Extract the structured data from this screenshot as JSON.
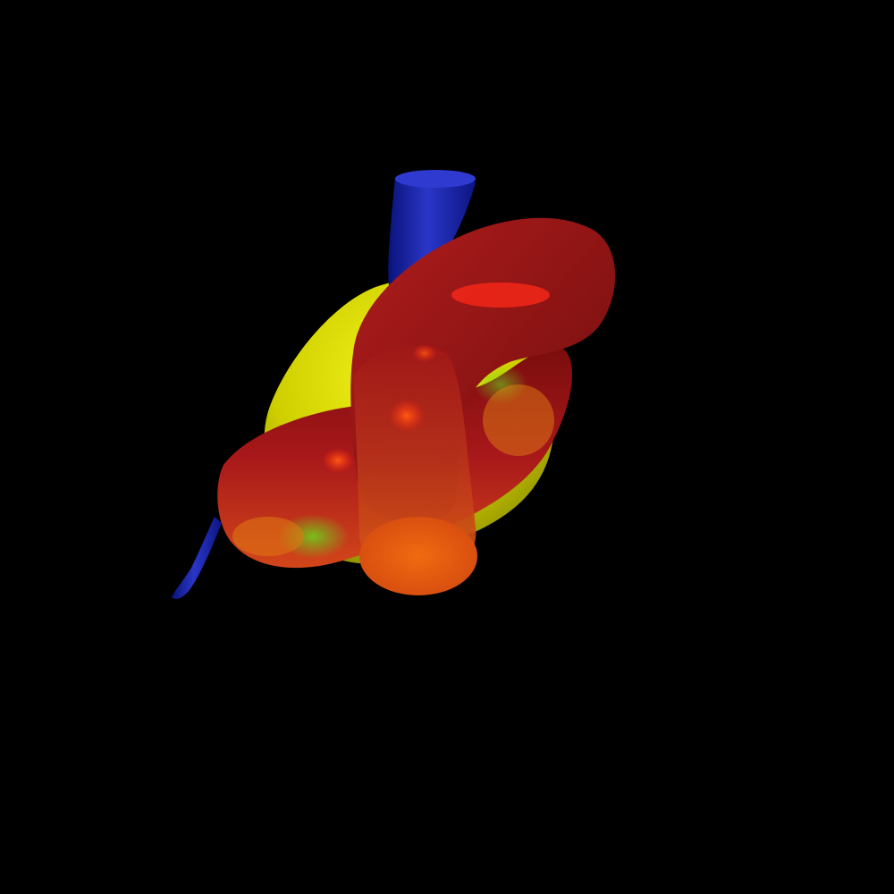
{
  "scene": {
    "background_color": "#000000",
    "objects": [
      {
        "name": "blue-vessel",
        "color": "#1c2ab0"
      },
      {
        "name": "yellow-chamber",
        "color": "#cfd000"
      },
      {
        "name": "red-knotted-tube",
        "color": "#a3181b"
      }
    ],
    "colormap": [
      "#1c2ab0",
      "#2aa01c",
      "#cfd000",
      "#e87a10",
      "#ff2a10",
      "#8a1010"
    ]
  }
}
